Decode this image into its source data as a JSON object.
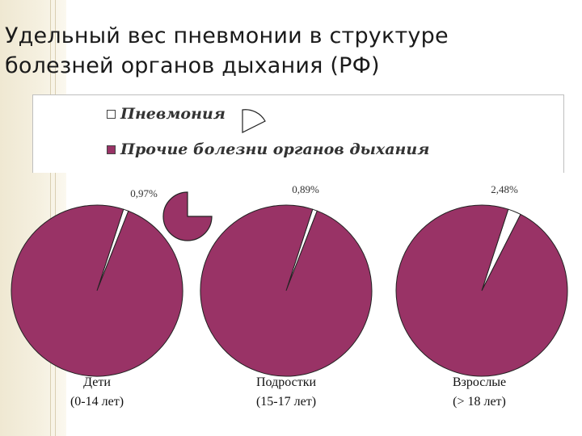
{
  "title_line1": "Удельный вес пневмонии в структуре",
  "title_line2": "болезней органов дыхания (РФ)",
  "colors": {
    "pneumonia": "#ffffff",
    "other": "#993366",
    "outline": "#222222"
  },
  "chart_data": {
    "type": "pie",
    "legend": [
      "Пневмония",
      "Прочие болезни органов дыхания"
    ],
    "legend_position": "top",
    "charts": [
      {
        "group": "Дети",
        "age": "(0-14 лет)",
        "pneumonia_label": "0,97%",
        "slices": [
          {
            "name": "Пневмония",
            "value": 0.97
          },
          {
            "name": "Прочие болезни органов дыхания",
            "value": 99.03
          }
        ]
      },
      {
        "group": "Подростки",
        "age": "(15-17 лет)",
        "pneumonia_label": "0,89%",
        "slices": [
          {
            "name": "Пневмония",
            "value": 0.89
          },
          {
            "name": "Прочие болезни органов дыхания",
            "value": 99.11
          }
        ]
      },
      {
        "group": "Взрослые",
        "age": "(> 18 лет)",
        "pneumonia_label": "2,48%",
        "slices": [
          {
            "name": "Пневмония",
            "value": 2.48
          },
          {
            "name": "Прочие болезни органов дыхания",
            "value": 97.52
          }
        ]
      }
    ]
  }
}
